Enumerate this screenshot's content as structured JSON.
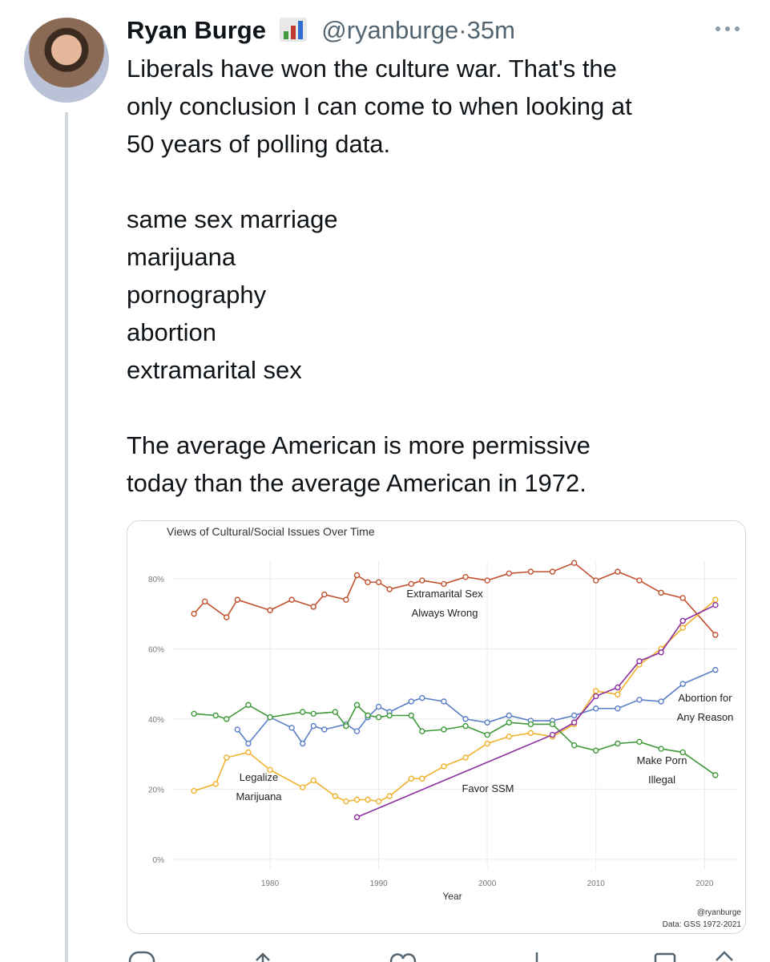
{
  "tweet": {
    "author": "Ryan Burge",
    "handle": "@ryanburge",
    "separator": "·",
    "time": "35m",
    "paragraphs": [
      [
        "Liberals have won the culture war. That's the",
        "only conclusion I can come to when looking at",
        "50 years of polling data."
      ],
      [
        "same sex marriage",
        "marijuana",
        "pornography",
        "abortion",
        "extramarital sex"
      ],
      [
        "The average American is more permissive",
        "today than the average American in 1972."
      ]
    ]
  },
  "chart_data": {
    "type": "line",
    "title": "Views of Cultural/Social Issues Over Time",
    "x_label": "Year",
    "credit": "@ryanburge",
    "source": "Data: GSS 1972-2021",
    "xlim": [
      1971,
      2023
    ],
    "xticks": [
      1980,
      1990,
      2000,
      2010,
      2020
    ],
    "ylim": [
      -3,
      85
    ],
    "yticks": [
      {
        "value": 0,
        "label": "0%"
      },
      {
        "value": 20,
        "label": "20%"
      },
      {
        "value": 40,
        "label": "40%"
      },
      {
        "value": 60,
        "label": "60%"
      },
      {
        "value": 80,
        "label": "80%"
      }
    ],
    "grid": true,
    "series": [
      {
        "name": "Extramarital Sex Always Wrong",
        "color": "#c0512f",
        "x": [
          1973,
          1974,
          1976,
          1977,
          1980,
          1982,
          1984,
          1985,
          1987,
          1988,
          1989,
          1990,
          1991,
          1993,
          1994,
          1996,
          1998,
          2000,
          2002,
          2004,
          2006,
          2008,
          2010,
          2012,
          2014,
          2016,
          2018,
          2021
        ],
        "values": [
          70,
          73.5,
          69,
          74,
          71,
          74,
          72,
          75.5,
          74,
          81,
          79,
          79,
          77,
          78.5,
          79.5,
          78.5,
          80.5,
          79.5,
          81.5,
          82,
          82,
          84.5,
          79.5,
          82,
          79.5,
          76,
          74.5,
          64
        ]
      },
      {
        "name": "Legalize Marijuana",
        "color": "#f0b12b",
        "x": [
          1973,
          1975,
          1976,
          1978,
          1980,
          1983,
          1984,
          1986,
          1987,
          1988,
          1989,
          1990,
          1991,
          1993,
          1994,
          1996,
          1998,
          2000,
          2002,
          2004,
          2006,
          2008,
          2010,
          2012,
          2014,
          2016,
          2018,
          2021
        ],
        "values": [
          19.5,
          21.5,
          29,
          30.5,
          25.5,
          20.5,
          22.5,
          18,
          16.5,
          17,
          17,
          16.5,
          18,
          23,
          23,
          26.5,
          29,
          33,
          35,
          36,
          35,
          38.5,
          48,
          47,
          55.5,
          60,
          66,
          74
        ]
      },
      {
        "name": "Abortion for Any Reason",
        "color": "#5b7fc7",
        "x": [
          1977,
          1978,
          1980,
          1982,
          1983,
          1984,
          1985,
          1987,
          1988,
          1989,
          1990,
          1991,
          1993,
          1994,
          1996,
          1998,
          2000,
          2002,
          2004,
          2006,
          2008,
          2010,
          2012,
          2014,
          2016,
          2018,
          2021
        ],
        "values": [
          37,
          33,
          40.5,
          37.5,
          33,
          38,
          37,
          38.5,
          36.5,
          40.5,
          43.5,
          42,
          45,
          46,
          45,
          40,
          39,
          41,
          39.5,
          39.5,
          41,
          43,
          43,
          45.5,
          45,
          50,
          54
        ]
      },
      {
        "name": "Make Porn Illegal",
        "color": "#3f9a3a",
        "x": [
          1973,
          1975,
          1976,
          1978,
          1980,
          1983,
          1984,
          1986,
          1987,
          1988,
          1989,
          1990,
          1991,
          1993,
          1994,
          1996,
          1998,
          2000,
          2002,
          2004,
          2006,
          2008,
          2010,
          2012,
          2014,
          2016,
          2018,
          2021
        ],
        "values": [
          41.5,
          41,
          40,
          44,
          40.5,
          42,
          41.5,
          42,
          38,
          44,
          41,
          40.5,
          41,
          41,
          36.5,
          37,
          38,
          35.5,
          39,
          38.5,
          38.5,
          32.5,
          31,
          33,
          33.5,
          31.5,
          30.5,
          24
        ]
      },
      {
        "name": "Favor SSM",
        "color": "#8b2fa0",
        "x": [
          1988,
          2006,
          2008,
          2010,
          2012,
          2014,
          2016,
          2018,
          2021
        ],
        "values": [
          12,
          35.5,
          39,
          46.5,
          49,
          56.5,
          59,
          68,
          72.5
        ]
      }
    ]
  }
}
